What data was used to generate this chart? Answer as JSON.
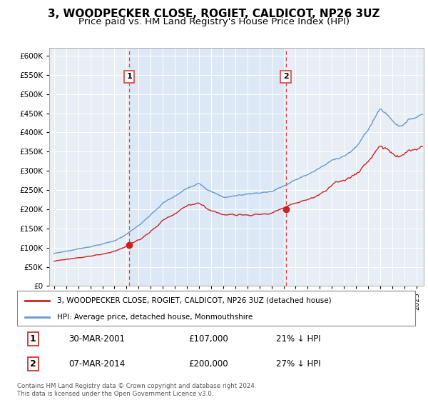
{
  "title": "3, WOODPECKER CLOSE, ROGIET, CALDICOT, NP26 3UZ",
  "subtitle": "Price paid vs. HM Land Registry's House Price Index (HPI)",
  "title_fontsize": 11,
  "subtitle_fontsize": 9.5,
  "background_color": "#ffffff",
  "plot_bg_color": "#dce8f5",
  "plot_bg_outside_color": "#e8eef5",
  "grid_color": "#ffffff",
  "hpi_line_color": "#6699cc",
  "price_line_color": "#cc2222",
  "vline_color": "#dd4444",
  "sale1_year": 2001.23,
  "sale1_price": 107000,
  "sale2_year": 2014.18,
  "sale2_price": 200000,
  "legend_entry1": "3, WOODPECKER CLOSE, ROGIET, CALDICOT, NP26 3UZ (detached house)",
  "legend_entry2": "HPI: Average price, detached house, Monmouthshire",
  "table_row1_date": "30-MAR-2001",
  "table_row1_price": "£107,000",
  "table_row1_pct": "21% ↓ HPI",
  "table_row2_date": "07-MAR-2014",
  "table_row2_price": "£200,000",
  "table_row2_pct": "27% ↓ HPI",
  "footer": "Contains HM Land Registry data © Crown copyright and database right 2024.\nThis data is licensed under the Open Government Licence v3.0.",
  "ylim_min": 0,
  "ylim_max": 620000,
  "ytick_step": 50000,
  "xstart": 1995,
  "xend": 2025
}
